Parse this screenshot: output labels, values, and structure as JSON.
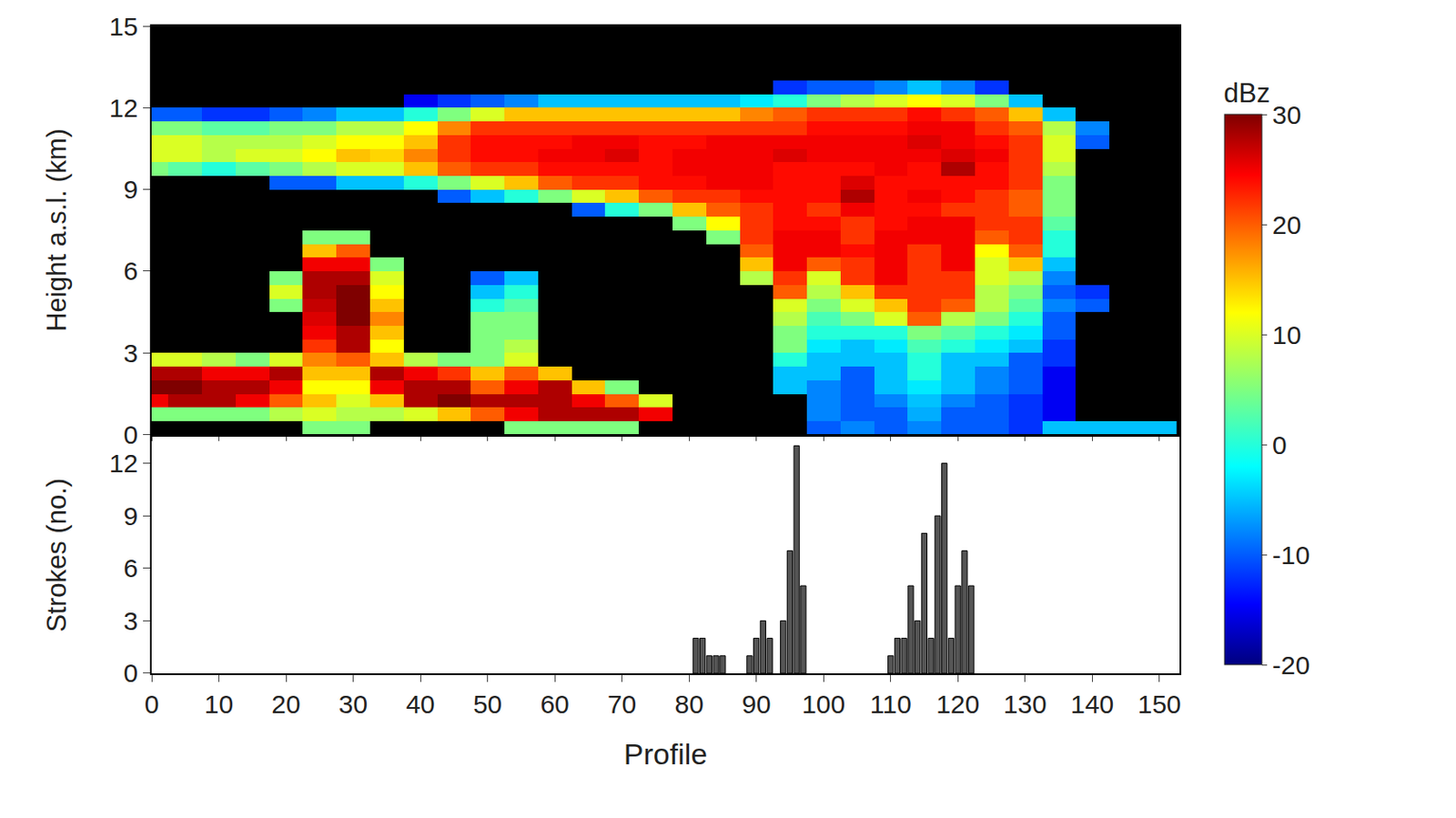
{
  "chart_data": [
    {
      "type": "heatmap",
      "ylabel": "Height a.s.l. (km)",
      "x": [
        0,
        5,
        10,
        15,
        20,
        25,
        30,
        35,
        40,
        45,
        50,
        55,
        60,
        65,
        70,
        75,
        80,
        85,
        90,
        95,
        100,
        105,
        110,
        115,
        120,
        125,
        130,
        135,
        140,
        145,
        150
      ],
      "y": [
        0.25,
        0.75,
        1.25,
        1.75,
        2.25,
        2.75,
        3.25,
        3.75,
        4.25,
        4.75,
        5.25,
        5.75,
        6.25,
        6.75,
        7.25,
        7.75,
        8.25,
        8.75,
        9.25,
        9.75,
        10.25,
        10.75,
        11.25,
        11.75,
        12.25,
        12.75
      ],
      "z": [
        [
          null,
          null,
          null,
          null,
          null,
          5,
          5,
          null,
          null,
          null,
          null,
          5,
          5,
          5,
          5,
          null,
          null,
          null,
          null,
          null,
          -10,
          -8,
          -10,
          -8,
          -10,
          -10,
          -12,
          -5,
          -5,
          -5,
          -5
        ],
        [
          5,
          5,
          5,
          5,
          8,
          10,
          8,
          8,
          10,
          15,
          20,
          25,
          28,
          28,
          28,
          25,
          null,
          null,
          null,
          null,
          -8,
          -10,
          -10,
          -6,
          -10,
          -10,
          -12,
          -15,
          null,
          null,
          null
        ],
        [
          25,
          28,
          28,
          25,
          20,
          15,
          10,
          15,
          28,
          30,
          28,
          28,
          28,
          25,
          20,
          10,
          null,
          null,
          null,
          null,
          -8,
          -10,
          -8,
          -5,
          -8,
          -10,
          -12,
          -15,
          null,
          null,
          null
        ],
        [
          30,
          30,
          28,
          28,
          25,
          12,
          12,
          25,
          28,
          28,
          20,
          25,
          28,
          15,
          5,
          null,
          null,
          null,
          null,
          -5,
          -8,
          -10,
          -5,
          -3,
          -5,
          -8,
          -10,
          -15,
          null,
          null,
          null
        ],
        [
          28,
          28,
          25,
          25,
          28,
          15,
          15,
          28,
          25,
          22,
          15,
          20,
          15,
          null,
          null,
          null,
          null,
          null,
          null,
          -5,
          -5,
          -10,
          -5,
          0,
          -5,
          -8,
          -10,
          -15,
          null,
          null,
          null
        ],
        [
          10,
          10,
          8,
          5,
          10,
          18,
          20,
          15,
          8,
          5,
          5,
          10,
          null,
          null,
          null,
          null,
          null,
          null,
          null,
          0,
          -5,
          -5,
          -5,
          0,
          -5,
          -5,
          -10,
          -12,
          null,
          null,
          null
        ],
        [
          null,
          null,
          null,
          null,
          null,
          22,
          28,
          12,
          null,
          null,
          5,
          8,
          null,
          null,
          null,
          null,
          null,
          null,
          null,
          5,
          -3,
          -5,
          -3,
          2,
          0,
          -3,
          -5,
          -12,
          null,
          null,
          null
        ],
        [
          null,
          null,
          null,
          null,
          null,
          25,
          28,
          15,
          null,
          null,
          5,
          5,
          null,
          null,
          null,
          null,
          null,
          null,
          null,
          5,
          0,
          0,
          0,
          5,
          3,
          0,
          -3,
          -10,
          null,
          null,
          null
        ],
        [
          null,
          null,
          null,
          null,
          null,
          26,
          30,
          18,
          null,
          null,
          5,
          5,
          null,
          null,
          null,
          null,
          null,
          null,
          null,
          8,
          2,
          5,
          10,
          20,
          8,
          5,
          0,
          -10,
          null,
          null,
          null
        ],
        [
          null,
          null,
          null,
          null,
          5,
          27,
          30,
          15,
          null,
          null,
          0,
          3,
          null,
          null,
          null,
          null,
          null,
          null,
          null,
          10,
          5,
          10,
          15,
          22,
          20,
          8,
          3,
          -8,
          -10,
          null,
          null
        ],
        [
          null,
          null,
          null,
          null,
          10,
          28,
          30,
          12,
          null,
          null,
          -5,
          0,
          null,
          null,
          null,
          null,
          null,
          null,
          null,
          20,
          8,
          15,
          22,
          22,
          22,
          8,
          5,
          -10,
          -12,
          null,
          null
        ],
        [
          null,
          null,
          null,
          null,
          5,
          28,
          28,
          10,
          null,
          null,
          -10,
          -5,
          null,
          null,
          null,
          null,
          null,
          null,
          8,
          22,
          10,
          22,
          25,
          22,
          22,
          10,
          8,
          -8,
          null,
          null,
          null
        ],
        [
          null,
          null,
          null,
          null,
          null,
          25,
          25,
          5,
          null,
          null,
          null,
          null,
          null,
          null,
          null,
          null,
          null,
          null,
          15,
          25,
          20,
          22,
          25,
          22,
          25,
          10,
          15,
          -5,
          null,
          null,
          null
        ],
        [
          null,
          null,
          null,
          null,
          null,
          15,
          20,
          null,
          null,
          null,
          null,
          null,
          null,
          null,
          null,
          null,
          null,
          null,
          20,
          25,
          25,
          24,
          25,
          22,
          25,
          12,
          20,
          0,
          null,
          null,
          null
        ],
        [
          null,
          null,
          null,
          null,
          null,
          5,
          5,
          null,
          null,
          null,
          null,
          null,
          null,
          null,
          null,
          null,
          null,
          5,
          22,
          25,
          25,
          22,
          25,
          25,
          25,
          20,
          22,
          0,
          null,
          null,
          null
        ],
        [
          null,
          null,
          null,
          null,
          null,
          null,
          null,
          null,
          null,
          null,
          null,
          null,
          null,
          null,
          null,
          null,
          5,
          12,
          22,
          24,
          24,
          22,
          24,
          25,
          25,
          22,
          22,
          3,
          null,
          null,
          null
        ],
        [
          null,
          null,
          null,
          null,
          null,
          null,
          null,
          null,
          null,
          null,
          null,
          null,
          null,
          -10,
          0,
          5,
          15,
          20,
          22,
          24,
          22,
          25,
          24,
          24,
          22,
          22,
          20,
          5,
          null,
          null,
          null
        ],
        [
          null,
          null,
          null,
          null,
          null,
          null,
          null,
          null,
          null,
          -10,
          -5,
          0,
          5,
          10,
          15,
          20,
          22,
          22,
          24,
          24,
          24,
          28,
          24,
          25,
          24,
          22,
          20,
          5,
          null,
          null,
          null
        ],
        [
          null,
          null,
          null,
          null,
          -10,
          -10,
          -5,
          -5,
          0,
          5,
          10,
          15,
          20,
          22,
          22,
          24,
          24,
          25,
          25,
          24,
          24,
          26,
          24,
          24,
          24,
          24,
          22,
          5,
          null,
          null,
          null
        ],
        [
          5,
          3,
          0,
          3,
          5,
          8,
          10,
          10,
          15,
          20,
          22,
          22,
          24,
          24,
          24,
          24,
          25,
          25,
          25,
          24,
          24,
          24,
          25,
          24,
          28,
          24,
          22,
          8,
          null,
          null,
          null
        ],
        [
          10,
          10,
          8,
          10,
          10,
          12,
          15,
          14,
          18,
          22,
          24,
          24,
          25,
          25,
          26,
          24,
          25,
          25,
          25,
          26,
          25,
          25,
          25,
          25,
          26,
          25,
          22,
          10,
          null,
          null,
          null
        ],
        [
          10,
          10,
          8,
          8,
          8,
          10,
          12,
          12,
          15,
          22,
          24,
          24,
          24,
          25,
          25,
          24,
          24,
          25,
          25,
          25,
          25,
          25,
          25,
          26,
          25,
          24,
          22,
          10,
          -10,
          null,
          null
        ],
        [
          5,
          5,
          3,
          3,
          5,
          5,
          8,
          8,
          12,
          18,
          22,
          22,
          22,
          22,
          22,
          22,
          22,
          22,
          22,
          22,
          24,
          24,
          24,
          25,
          25,
          22,
          20,
          8,
          -8,
          null,
          null
        ],
        [
          -10,
          -10,
          -12,
          -12,
          -10,
          -8,
          -5,
          -5,
          0,
          5,
          10,
          15,
          15,
          15,
          15,
          15,
          15,
          15,
          18,
          20,
          22,
          22,
          22,
          24,
          22,
          20,
          15,
          -5,
          null,
          null,
          null
        ],
        [
          null,
          null,
          null,
          null,
          null,
          null,
          null,
          null,
          -15,
          -12,
          -10,
          -8,
          -5,
          -5,
          -5,
          -5,
          -5,
          -5,
          -3,
          0,
          5,
          8,
          10,
          12,
          10,
          5,
          -5,
          null,
          null,
          null,
          null
        ],
        [
          null,
          null,
          null,
          null,
          null,
          null,
          null,
          null,
          null,
          null,
          null,
          null,
          null,
          null,
          null,
          null,
          null,
          null,
          null,
          -12,
          -10,
          -10,
          -8,
          -5,
          -8,
          -12,
          null,
          null,
          null,
          null,
          null
        ]
      ],
      "xlim": [
        0,
        153
      ],
      "xticks": [
        0,
        10,
        20,
        30,
        40,
        50,
        60,
        70,
        80,
        90,
        100,
        110,
        120,
        130,
        140,
        150
      ],
      "ylim": [
        0,
        15
      ],
      "yticks": [
        0,
        3,
        6,
        9,
        12,
        15
      ],
      "zlim": [
        -20,
        30
      ],
      "zticks": [
        -20,
        -10,
        0,
        10,
        20,
        30
      ],
      "colorbar_title": "dBz",
      "tick_labels": "y",
      "grid": false
    },
    {
      "type": "bar",
      "xlabel": "Profile",
      "ylabel": "Strokes (no.)",
      "x": [
        81,
        82,
        83,
        84,
        85,
        89,
        90,
        91,
        92,
        94,
        95,
        96,
        97,
        110,
        111,
        112,
        113,
        114,
        115,
        116,
        117,
        118,
        119,
        120,
        121,
        122
      ],
      "values": [
        2,
        2,
        1,
        1,
        1,
        1,
        2,
        3,
        2,
        3,
        7,
        13,
        5,
        1,
        2,
        2,
        5,
        3,
        8,
        2,
        9,
        12,
        2,
        5,
        7,
        5
      ],
      "color": "#555555",
      "xlim": [
        0,
        153
      ],
      "xticks": [
        0,
        10,
        20,
        30,
        40,
        50,
        60,
        70,
        80,
        90,
        100,
        110,
        120,
        130,
        140,
        150
      ],
      "ylim": [
        0,
        13.5
      ],
      "yticks": [
        0,
        3,
        6,
        9,
        12
      ],
      "grid": false
    }
  ]
}
